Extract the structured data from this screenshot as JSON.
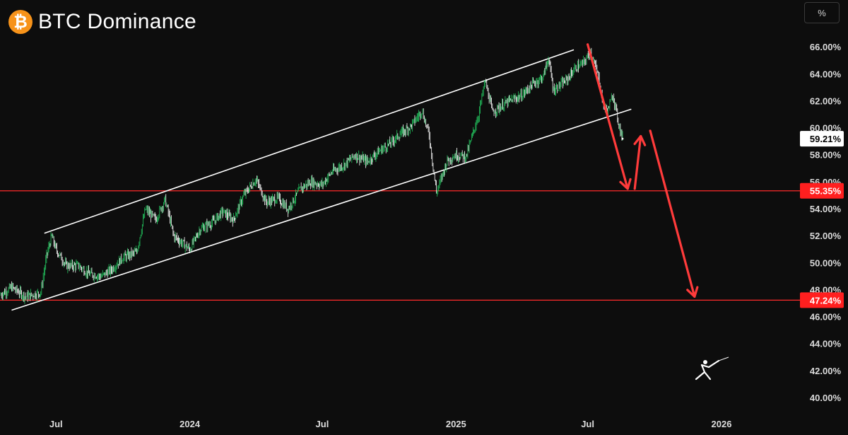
{
  "header": {
    "title": "BTC Dominance",
    "logo_icon": "bitcoin-logo-icon",
    "logo_glyph": "₿"
  },
  "toolbar": {
    "unit_label": "%"
  },
  "colors": {
    "background": "#0d0d0d",
    "candle_up": "#22c55e",
    "candle_down": "#ffffff",
    "channel": "#ffffff",
    "support": "#ff2a2a",
    "arrow": "#ff3b3b",
    "current_badge_bg": "#ffffff",
    "support_badge_bg": "#ff1f1f"
  },
  "chart_data": {
    "type": "line",
    "yscale": {
      "unit": "%",
      "range": [
        39.5,
        67.5
      ]
    },
    "y_ticks": [
      "66.00%",
      "64.00%",
      "62.00%",
      "60.00%",
      "58.00%",
      "56.00%",
      "54.00%",
      "52.00%",
      "50.00%",
      "48.00%",
      "46.00%",
      "44.00%",
      "42.00%",
      "40.00%"
    ],
    "x_ticks": [
      "Jul",
      "2024",
      "Jul",
      "2025",
      "Jul",
      "2026"
    ],
    "x_range": [
      "2023-04-15",
      "2026-04-15"
    ],
    "x_tick_dates": [
      "2023-07-01",
      "2024-01-01",
      "2024-07-01",
      "2025-01-01",
      "2025-07-01",
      "2026-01-01"
    ],
    "series": [
      {
        "x": [
          "2023-04-15",
          "2023-05-01",
          "2023-05-20",
          "2023-06-10",
          "2023-06-18",
          "2023-06-25",
          "2023-07-01",
          "2023-07-15",
          "2023-08-01",
          "2023-08-15",
          "2023-09-01",
          "2023-09-15",
          "2023-10-01",
          "2023-10-20",
          "2023-11-01",
          "2023-11-15",
          "2023-11-28",
          "2023-12-10",
          "2024-01-01",
          "2024-01-15",
          "2024-02-01",
          "2024-02-15",
          "2024-03-01",
          "2024-03-15",
          "2024-04-01",
          "2024-04-15",
          "2024-05-01",
          "2024-05-15",
          "2024-06-01",
          "2024-06-15",
          "2024-07-01",
          "2024-07-15",
          "2024-08-01",
          "2024-08-15",
          "2024-09-01",
          "2024-09-15",
          "2024-10-01",
          "2024-10-15",
          "2024-11-01",
          "2024-11-15",
          "2024-11-25",
          "2024-12-05",
          "2024-12-20",
          "2025-01-01",
          "2025-01-15",
          "2025-02-01",
          "2025-02-10",
          "2025-02-20",
          "2025-03-01",
          "2025-03-15",
          "2025-04-01",
          "2025-04-15",
          "2025-05-01",
          "2025-05-08",
          "2025-05-15",
          "2025-06-01",
          "2025-06-15",
          "2025-06-25",
          "2025-07-05",
          "2025-07-15",
          "2025-07-22",
          "2025-07-28",
          "2025-08-05",
          "2025-08-12",
          "2025-08-18"
        ],
        "values": [
          47.6,
          48.2,
          47.5,
          47.8,
          50.5,
          52.0,
          51.0,
          49.8,
          49.8,
          49.2,
          49.0,
          49.5,
          50.4,
          50.8,
          54.0,
          53.2,
          54.7,
          52.0,
          51.0,
          52.5,
          53.0,
          53.8,
          53.2,
          55.0,
          56.2,
          54.5,
          54.8,
          54.0,
          55.5,
          56.0,
          55.8,
          56.8,
          57.3,
          58.0,
          57.5,
          58.2,
          58.8,
          59.5,
          60.2,
          61.3,
          59.5,
          55.2,
          57.6,
          58.0,
          57.9,
          61.0,
          63.5,
          61.2,
          61.5,
          62.0,
          62.4,
          63.2,
          63.8,
          65.2,
          62.8,
          63.5,
          64.5,
          64.8,
          65.6,
          64.0,
          61.8,
          61.2,
          62.5,
          60.5,
          59.21
        ]
      }
    ],
    "channel_lines": [
      {
        "from": [
          "2023-06-15",
          52.2
        ],
        "to": [
          "2025-06-12",
          65.8
        ]
      },
      {
        "from": [
          "2023-05-01",
          46.5
        ],
        "to": [
          "2025-08-30",
          61.4
        ]
      }
    ],
    "horizontal_levels": [
      {
        "value": 55.35,
        "label": "55.35%"
      },
      {
        "value": 47.24,
        "label": "47.24%"
      }
    ],
    "projection_path": [
      [
        "2025-07-01",
        66.2
      ],
      [
        "2025-08-25",
        55.5
      ],
      [
        "2025-09-12",
        59.4
      ],
      [
        "2025-09-25",
        59.8
      ],
      [
        "2025-11-25",
        47.5
      ]
    ],
    "current_value": {
      "value": 59.21,
      "label": "59.21%"
    }
  }
}
